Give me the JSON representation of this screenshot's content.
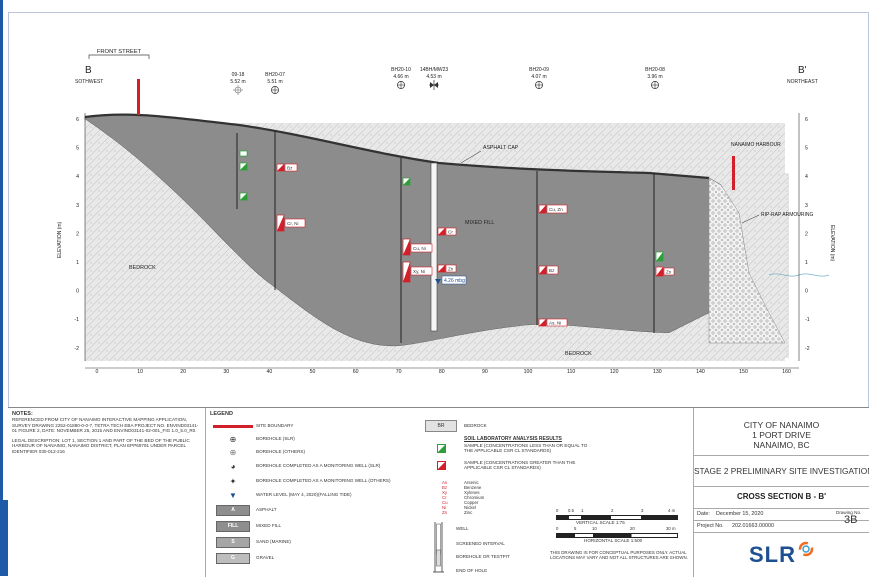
{
  "section": {
    "left_letter": "B",
    "left_dir": "SOTHWEST",
    "right_letter": "B'",
    "right_dir": "NORTHEAST",
    "front_street": "FRONT STREET"
  },
  "boreholes": [
    {
      "id": "09-18",
      "elev": "5.52 m"
    },
    {
      "id": "BH20-07",
      "elev": "5.51 m"
    },
    {
      "id": "BH20-10",
      "elev": "4.66 m"
    },
    {
      "id": "14BH/MW23",
      "elev": "4.53 m"
    },
    {
      "id": "BH20-09",
      "elev": "4.07 m"
    },
    {
      "id": "BH20-08",
      "elev": "3.96 m"
    }
  ],
  "diagram_labels": {
    "asphalt_cap": "ASPHALT CAP",
    "mixed_fill": "MIXED FILL",
    "bedrock_left": "BEDROCK",
    "bedrock_bottom": "BEDROCK",
    "harbour": "NANAIMO HARBOUR",
    "riprap": "RIP-RAP ARMOURING",
    "elevation_axis": "ELEVATION (m)",
    "water_level": "4.26 mbg"
  },
  "sample_tags": [
    {
      "text": "Bz"
    },
    {
      "text": "Cr, Ni"
    },
    {
      "text": "Cu, Ni"
    },
    {
      "text": "Xy, Ni"
    },
    {
      "text": "Cr"
    },
    {
      "text": "Zn"
    },
    {
      "text": "Cu, Zn"
    },
    {
      "text": "Bz"
    },
    {
      "text": "As, Ni"
    },
    {
      "text": "Zn"
    }
  ],
  "axes": {
    "x_ticks": [
      "0",
      "10",
      "20",
      "30",
      "40",
      "50",
      "60",
      "70",
      "80",
      "90",
      "100",
      "110",
      "120",
      "130",
      "140",
      "150",
      "160"
    ],
    "y_ticks": [
      "6",
      "5",
      "4",
      "3",
      "2",
      "1",
      "0",
      "-1",
      "-2"
    ]
  },
  "notes": {
    "heading": "NOTES:",
    "p1": "REFERENCED FROM CITY OF NANAIMO INTERACTIVE MAPPING APPLICATION, SURVEY DRAWING 2252-01880-0-0-7, TETRA TECH EBA PROJECT No. ENVIND03141-01 FIGURE 2, DATE: NOVEMBER 25, 2015 AND ENVIND03141-02-001_FIG 1.0_5.0_R0.",
    "p2": "LEGAL DESCRIPTION: LOT 1, SECTION 1 AND PART OF THE BED OF THE PUBLIC HARBOUR OF NANAIMO, NANAIMO DISTRICT, PLAN EPP69791 UNDER PARCEL IDENTIFIER 030-012-216"
  },
  "legend": {
    "title": "LEGEND",
    "items": [
      "SITE BOUNDARY",
      "BOREHOLE (SLR)",
      "BOREHOLE (OTHERS)",
      "BOREHOLE COMPLETED AS A MONITORING WELL (SLR)",
      "BOREHOLE COMPLETED AS A MONITORING WELL (OTHERS)",
      "WATER LEVEL (MAY 4, 2020)(FALLING TIDE)",
      "ASPHALT",
      "MIXED FILL",
      "SAND (MARINE)",
      "GRAVEL"
    ],
    "box_codes": [
      "A",
      "FILL",
      "S",
      "G"
    ],
    "bedrock_code": "BR",
    "bedrock": "BEDROCK",
    "soil_heading": "SOIL LABORATORY ANALYSIS RESULTS",
    "soil_le": "SAMPLE (CONCENTRATIONS LESS THAN OR EQUAL TO THE APPLICABLE CSR CL STANDARDS)",
    "soil_gt": "SAMPLE (CONCENTRATIONS GREATER THAN THE APPLICABLE CSR CL STANDARDS)",
    "abbr_codes": [
      "As",
      "Bz",
      "Xy",
      "Cr",
      "Cu",
      "Ni",
      "Zn"
    ],
    "abbr_names": [
      "Arsenic",
      "Benzene",
      "Xylenes",
      "Chromium",
      "Copper",
      "Nickel",
      "Zinc"
    ],
    "well": "WELL",
    "screened": "SCREENED INTERVAL",
    "bh_testpit": "BOREHOLE OR TESTPIT",
    "end_hole": "END OF HOLE",
    "vscale": "VERTICAL SCALE 1:75",
    "hscale": "HORIZONTAL SCALE 1:500",
    "vscale_ticks": [
      "0",
      "0.5",
      "1",
      "2",
      "3",
      "4 m"
    ],
    "hscale_ticks": [
      "0",
      "5",
      "10",
      "20",
      "30 m"
    ],
    "disclaimer": "THIS DRAWING IS FOR CONCEPTUAL PURPOSES ONLY. ACTUAL LOCATIONS MAY VARY AND NOT ALL STRUCTURES ARE SHOWN."
  },
  "title_block": {
    "city": "CITY OF NANAIMO",
    "address": "1 PORT DRIVE",
    "town": "NANAIMO, BC",
    "stage": "STAGE 2 PRELIMINARY SITE INVESTIGATION",
    "cross_section": "CROSS SECTION B - B'",
    "date_label": "Date:",
    "date": "December 15, 2020",
    "drawing_no_label": "Drawing No.",
    "drawing_no": "3B",
    "project_label": "Project No.",
    "project_no": "202.01663.00000",
    "logo": "SLR"
  },
  "colors": {
    "fill": "#8c8c8c",
    "bedrock": "#e6e6e6",
    "exceed": "#d21f2a",
    "compliant": "#2e9e3a",
    "site_boundary": "#d21f2a",
    "logo": "#1d4f91"
  }
}
